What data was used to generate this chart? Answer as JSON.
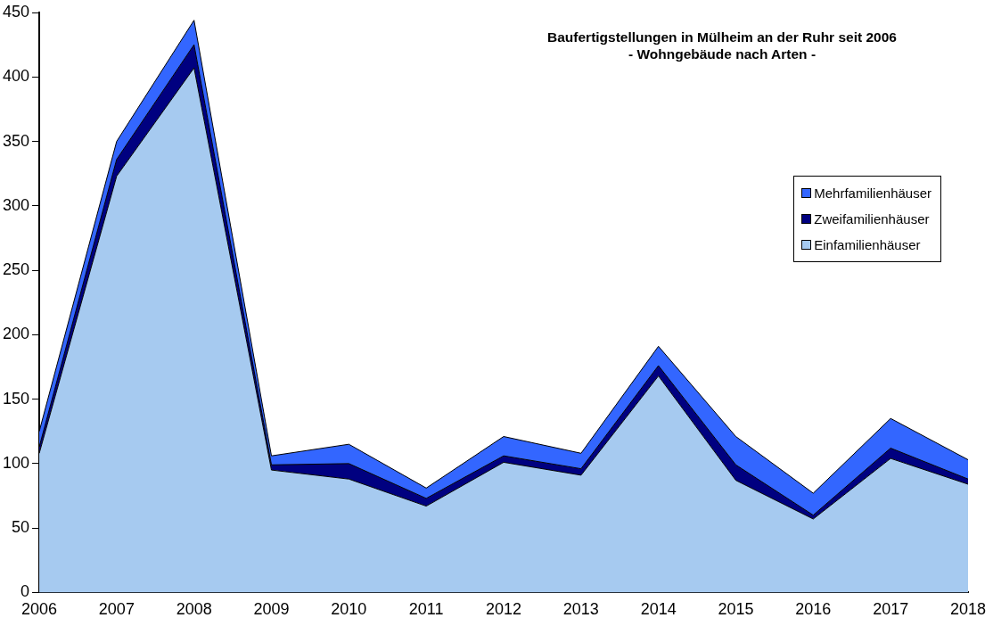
{
  "chart_data": {
    "type": "area",
    "title": "Baufertigstellungen in Mülheim an der Ruhr seit 2006",
    "subtitle": "- Wohngebäude nach Arten -",
    "categories": [
      "2006",
      "2007",
      "2008",
      "2009",
      "2010",
      "2011",
      "2012",
      "2013",
      "2014",
      "2015",
      "2016",
      "2017",
      "2018"
    ],
    "stacked": true,
    "ylim": [
      0,
      450
    ],
    "yticks": [
      0,
      50,
      100,
      150,
      200,
      250,
      300,
      350,
      400,
      450
    ],
    "grid": false,
    "legend": "right",
    "series": [
      {
        "name": "Einfamilienhäuser",
        "color": "#a6caf0",
        "values": [
          108,
          323,
          407,
          95,
          88,
          67,
          101,
          91,
          168,
          87,
          57,
          104,
          84
        ]
      },
      {
        "name": "Zweifamilienhäuser",
        "color": "#000080",
        "values": [
          5,
          13,
          18,
          4,
          12,
          6,
          5,
          5,
          8,
          12,
          3,
          8,
          4
        ]
      },
      {
        "name": "Mehrfamilienhäuser",
        "color": "#3366ff",
        "values": [
          12,
          14,
          19,
          7,
          15,
          8,
          15,
          12,
          15,
          22,
          17,
          23,
          15
        ]
      }
    ]
  }
}
